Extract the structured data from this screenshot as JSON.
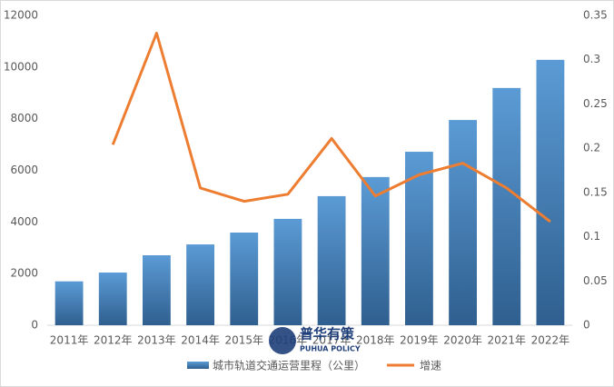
{
  "chart_data": {
    "type": "bar-line",
    "categories": [
      "2011年",
      "2012年",
      "2013年",
      "2014年",
      "2015年",
      "2016年",
      "2017年",
      "2018年",
      "2019年",
      "2020年",
      "2021年",
      "2022年"
    ],
    "series": [
      {
        "name": "城市轨道交通运营里程（公里）",
        "type": "bar",
        "color": "#4a8ccc",
        "values": [
          1700,
          2040,
          2710,
          3130,
          3590,
          4120,
          5000,
          5740,
          6720,
          7950,
          9190,
          10280
        ]
      },
      {
        "name": "增速",
        "type": "line",
        "axis": "y2",
        "color": "#ed7d31",
        "values": [
          null,
          0.204,
          0.33,
          0.155,
          0.14,
          0.148,
          0.211,
          0.146,
          0.17,
          0.183,
          0.155,
          0.117
        ]
      }
    ],
    "ylim": [
      0,
      12000
    ],
    "yticks": [
      0,
      2000,
      4000,
      6000,
      8000,
      10000,
      12000
    ],
    "y2lim": [
      0,
      0.35
    ],
    "y2ticks": [
      0,
      0.05,
      0.1,
      0.15,
      0.2,
      0.25,
      0.3,
      0.35
    ],
    "grid": false,
    "legend": "bottom"
  },
  "watermark": {
    "title": "普华有策",
    "subtitle": "PUHUA POLICY"
  }
}
